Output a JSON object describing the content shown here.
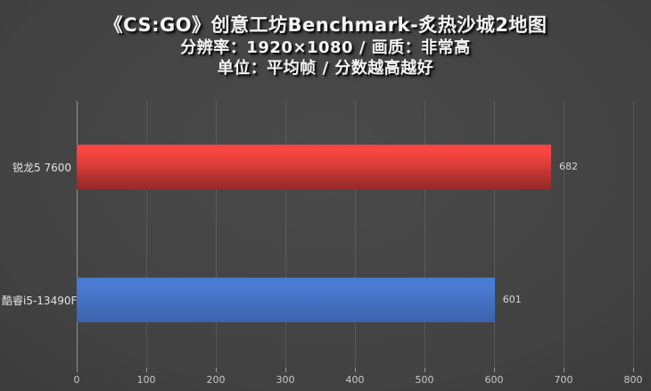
{
  "title": {
    "line1": "《CS:GO》创意工坊Benchmark-炙热沙城2地图",
    "line2": "分辨率：1920×1080 / 画质：非常高",
    "line3": "单位：平均帧 / 分数越高越好"
  },
  "chart_data": {
    "type": "bar",
    "orientation": "horizontal",
    "title": "《CS:GO》创意工坊Benchmark-炙热沙城2地图",
    "subtitle": "分辨率：1920×1080 / 画质：非常高",
    "unit_note": "单位：平均帧 / 分数越高越好",
    "categories": [
      "锐龙5 7600",
      "酷睿i5-13490F"
    ],
    "values": [
      682,
      601
    ],
    "bar_colors": [
      "#d83c39",
      "#4673c6"
    ],
    "value_label_color": "#d8d8d8",
    "xlim": [
      0,
      800
    ],
    "x_ticks": [
      0,
      100,
      200,
      300,
      400,
      500,
      600,
      700,
      800
    ],
    "grid": "vertical-major",
    "legend": "none",
    "background": "dark-gray-gradient"
  }
}
